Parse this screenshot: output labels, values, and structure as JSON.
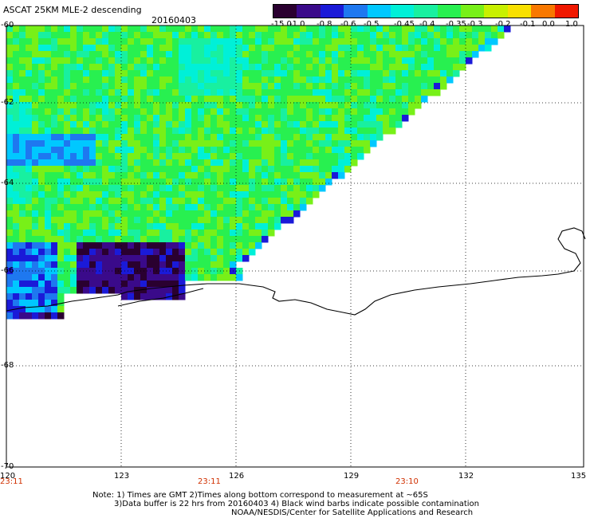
{
  "header": {
    "title": "ASCAT 25KM MLE-2 descending",
    "date": "20160403"
  },
  "colorbar": {
    "labels": [
      "-15.0",
      "-1.0",
      "-0.8",
      "-0.6",
      "-0.5",
      "-0.45",
      "-0.4",
      "-0.35",
      "-0.3",
      "-0.2",
      "-0.1",
      "0.0",
      "1.0"
    ],
    "colors": [
      "#2a0030",
      "#3a0a8a",
      "#1a1ad8",
      "#1e78f0",
      "#00c8ff",
      "#00f0d8",
      "#18f0a0",
      "#28f050",
      "#78f018",
      "#c8f000",
      "#f8e000",
      "#f87800",
      "#f01800"
    ]
  },
  "map": {
    "lat_labels": [
      "-60",
      "-62",
      "-64",
      "-66",
      "-68",
      "-70"
    ],
    "lon_labels": [
      "120",
      "123",
      "126",
      "129",
      "132",
      "135"
    ],
    "time_labels": [
      "23:11",
      "23:11",
      "23:10"
    ]
  },
  "notes": {
    "line1": "Note: 1) Times are GMT 2)Times along bottom correspond to measurement at ~65S",
    "line2": "3)Data buffer is 22 hrs from 20160403 4) Black wind barbs indicate possible contamination",
    "line3": "NOAA/NESDIS/Center for Satellite Applications and Research"
  }
}
